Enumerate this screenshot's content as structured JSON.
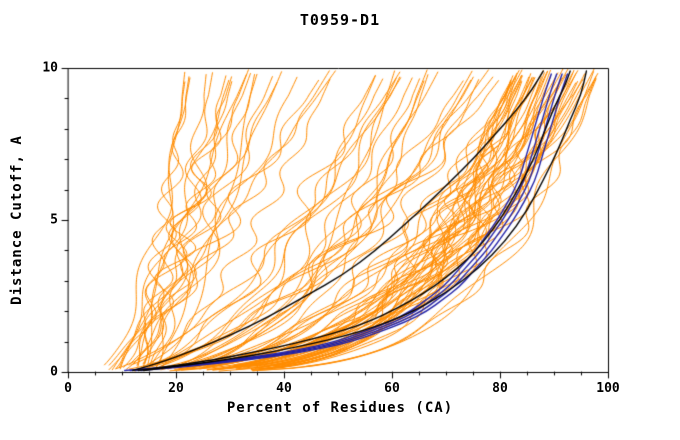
{
  "chart_data": {
    "type": "line",
    "title": "T0959-D1",
    "xlabel": "Percent of Residues (CA)",
    "ylabel": "Distance Cutoff, A",
    "xlim": [
      0,
      100
    ],
    "ylim": [
      0,
      10
    ],
    "x_ticks": [
      0,
      20,
      40,
      60,
      80,
      100
    ],
    "y_ticks": [
      0,
      5,
      10
    ],
    "x_minor_step": 5,
    "y_minor_step": 1,
    "grid": false,
    "legend_position": "none",
    "colors": {
      "background": "#ffffff",
      "axis": "#000000",
      "ensemble": "#ff8c00",
      "highlight": "#2222a8",
      "best": "#000000"
    },
    "series": {
      "ensemble": {
        "name": "orange-model-curves",
        "color_key": "ensemble",
        "count": 95,
        "seed": 959,
        "x_start_range": [
          4,
          16
        ],
        "groups": [
          {
            "weight": 0.45,
            "x_end_range": [
              82,
              99
            ],
            "p_range": [
              0.22,
              0.42
            ]
          },
          {
            "weight": 0.3,
            "x_end_range": [
              55,
              85
            ],
            "p_range": [
              0.3,
              0.7
            ]
          },
          {
            "weight": 0.25,
            "x_end_range": [
              18,
              55
            ],
            "p_range": [
              0.5,
              1.1
            ]
          }
        ],
        "wiggle_amp_range": [
          0.5,
          3.2
        ],
        "wiggle_freq_range": [
          2,
          6
        ]
      },
      "highlight_curves": {
        "name": "blue-model-curves",
        "color_key": "highlight",
        "offsets": [
          -1.5,
          -0.5,
          0.5,
          1.5
        ],
        "anchors": [
          [
            12,
            0.05
          ],
          [
            22,
            0.2
          ],
          [
            32,
            0.4
          ],
          [
            42,
            0.65
          ],
          [
            50,
            0.95
          ],
          [
            56,
            1.3
          ],
          [
            61,
            1.65
          ],
          [
            65,
            2.0
          ],
          [
            68,
            2.4
          ],
          [
            71,
            2.8
          ],
          [
            73,
            3.2
          ],
          [
            75,
            3.6
          ],
          [
            77,
            4.0
          ],
          [
            79,
            4.5
          ],
          [
            81,
            5.0
          ],
          [
            83,
            5.6
          ],
          [
            85,
            6.3
          ],
          [
            86,
            6.9
          ],
          [
            87,
            7.5
          ],
          [
            88,
            8.1
          ],
          [
            89,
            8.7
          ],
          [
            90,
            9.3
          ],
          [
            91,
            9.8
          ]
        ]
      },
      "best_curves": {
        "name": "black-model-curves",
        "color_key": "best",
        "curves": [
          [
            [
              12,
              0.05
            ],
            [
              17,
              0.3
            ],
            [
              23,
              0.7
            ],
            [
              30,
              1.2
            ],
            [
              37,
              1.8
            ],
            [
              44,
              2.5
            ],
            [
              51,
              3.2
            ],
            [
              57,
              4.0
            ],
            [
              62,
              4.8
            ],
            [
              67,
              5.6
            ],
            [
              71,
              6.3
            ],
            [
              75,
              7.0
            ],
            [
              79,
              7.8
            ],
            [
              83,
              8.6
            ],
            [
              86,
              9.3
            ],
            [
              88,
              9.9
            ]
          ],
          [
            [
              13,
              0.05
            ],
            [
              24,
              0.3
            ],
            [
              36,
              0.7
            ],
            [
              47,
              1.15
            ],
            [
              55,
              1.6
            ],
            [
              61,
              2.1
            ],
            [
              66,
              2.6
            ],
            [
              70,
              3.1
            ],
            [
              74,
              3.7
            ],
            [
              77,
              4.3
            ],
            [
              80,
              5.0
            ],
            [
              83,
              5.9
            ],
            [
              86,
              6.9
            ],
            [
              88,
              7.8
            ],
            [
              90,
              8.7
            ],
            [
              92,
              9.4
            ],
            [
              93,
              9.9
            ]
          ],
          [
            [
              14,
              0.05
            ],
            [
              28,
              0.35
            ],
            [
              42,
              0.8
            ],
            [
              54,
              1.3
            ],
            [
              63,
              1.9
            ],
            [
              70,
              2.6
            ],
            [
              76,
              3.4
            ],
            [
              81,
              4.3
            ],
            [
              85,
              5.3
            ],
            [
              88,
              6.3
            ],
            [
              91,
              7.4
            ],
            [
              93,
              8.3
            ],
            [
              95,
              9.1
            ],
            [
              96,
              9.9
            ]
          ]
        ]
      }
    }
  }
}
